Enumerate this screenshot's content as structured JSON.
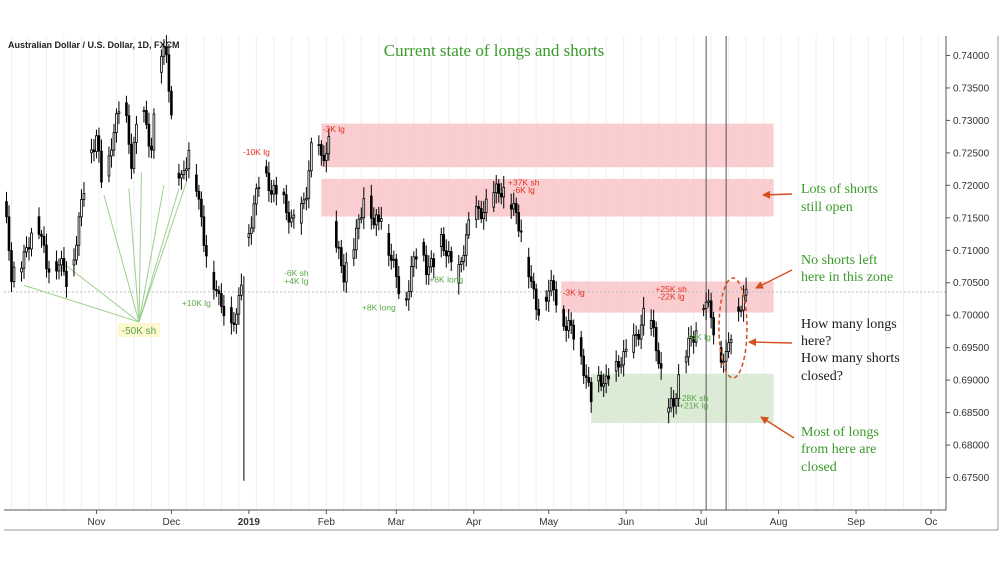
{
  "chart_data": {
    "type": "candlestick",
    "symbol_title": "Australian Dollar / U.S. Dollar, 1D, FXCM",
    "headline": "Current state of longs and shorts",
    "y_axis": {
      "min": 0.67,
      "max": 0.743,
      "ticks": [
        "0.74000",
        "0.73500",
        "0.73000",
        "0.72500",
        "0.72000",
        "0.71500",
        "0.71000",
        "0.70500",
        "0.70000",
        "0.69500",
        "0.69000",
        "0.68500",
        "0.68000",
        "0.67500"
      ],
      "tick_values": [
        0.74,
        0.735,
        0.73,
        0.725,
        0.72,
        0.715,
        0.71,
        0.705,
        0.7,
        0.695,
        0.69,
        0.685,
        0.68,
        0.675
      ],
      "reference_line": 0.7036
    },
    "x_axis": {
      "labels": [
        {
          "text": "Nov",
          "day": 37
        },
        {
          "text": "Dec",
          "day": 67
        },
        {
          "text": "2019",
          "day": 98,
          "bold": true
        },
        {
          "text": "Feb",
          "day": 129
        },
        {
          "text": "Mar",
          "day": 157
        },
        {
          "text": "Apr",
          "day": 188
        },
        {
          "text": "May",
          "day": 218
        },
        {
          "text": "Jun",
          "day": 249
        },
        {
          "text": "Jul",
          "day": 279
        },
        {
          "text": "Aug",
          "day": 310
        },
        {
          "text": "Sep",
          "day": 341
        },
        {
          "text": "Oc",
          "day": 371
        }
      ],
      "day_range": [
        0,
        377
      ],
      "vertical_markers": [
        281,
        289
      ]
    },
    "key_points": [
      [
        0,
        0.7175
      ],
      [
        3,
        0.7055
      ],
      [
        8,
        0.7095
      ],
      [
        13,
        0.7145
      ],
      [
        17,
        0.7085
      ],
      [
        22,
        0.7075
      ],
      [
        26,
        0.7045
      ],
      [
        29,
        0.7125
      ],
      [
        33,
        0.7215
      ],
      [
        37,
        0.728
      ],
      [
        40,
        0.7185
      ],
      [
        44,
        0.728
      ],
      [
        48,
        0.7335
      ],
      [
        51,
        0.724
      ],
      [
        55,
        0.7315
      ],
      [
        59,
        0.7265
      ],
      [
        62,
        0.7385
      ],
      [
        65,
        0.74
      ],
      [
        68,
        0.725
      ],
      [
        71,
        0.721
      ],
      [
        74,
        0.7245
      ],
      [
        77,
        0.72
      ],
      [
        80,
        0.7125
      ],
      [
        83,
        0.706
      ],
      [
        86,
        0.7015
      ],
      [
        90,
        0.701
      ],
      [
        93,
        0.699
      ],
      [
        96,
        0.708
      ],
      [
        100,
        0.7175
      ],
      [
        103,
        0.7225
      ],
      [
        107,
        0.7185
      ],
      [
        111,
        0.7195
      ],
      [
        115,
        0.7135
      ],
      [
        118,
        0.7145
      ],
      [
        121,
        0.72
      ],
      [
        124,
        0.7285
      ],
      [
        127,
        0.723
      ],
      [
        130,
        0.727
      ],
      [
        133,
        0.711
      ],
      [
        136,
        0.7055
      ],
      [
        139,
        0.7095
      ],
      [
        142,
        0.715
      ],
      [
        145,
        0.72
      ],
      [
        148,
        0.713
      ],
      [
        151,
        0.7165
      ],
      [
        154,
        0.7105
      ],
      [
        157,
        0.705
      ],
      [
        160,
        0.7015
      ],
      [
        163,
        0.7075
      ],
      [
        166,
        0.7105
      ],
      [
        169,
        0.707
      ],
      [
        172,
        0.7085
      ],
      [
        175,
        0.7115
      ],
      [
        178,
        0.708
      ],
      [
        181,
        0.7055
      ],
      [
        184,
        0.711
      ],
      [
        187,
        0.7145
      ],
      [
        190,
        0.7155
      ],
      [
        193,
        0.7175
      ],
      [
        196,
        0.7185
      ],
      [
        199,
        0.7185
      ],
      [
        202,
        0.7185
      ],
      [
        205,
        0.716
      ],
      [
        208,
        0.7105
      ],
      [
        211,
        0.7045
      ],
      [
        214,
        0.7015
      ],
      [
        217,
        0.703
      ],
      [
        220,
        0.7035
      ],
      [
        223,
        0.7005
      ],
      [
        226,
        0.6985
      ],
      [
        229,
        0.696
      ],
      [
        232,
        0.692
      ],
      [
        235,
        0.688
      ],
      [
        238,
        0.6895
      ],
      [
        241,
        0.689
      ],
      [
        244,
        0.692
      ],
      [
        247,
        0.6935
      ],
      [
        250,
        0.693
      ],
      [
        253,
        0.697
      ],
      [
        256,
        0.7005
      ],
      [
        259,
        0.698
      ],
      [
        262,
        0.693
      ],
      [
        265,
        0.687
      ],
      [
        268,
        0.686
      ],
      [
        271,
        0.6915
      ],
      [
        274,
        0.696
      ],
      [
        277,
        0.6985
      ],
      [
        280,
        0.7015
      ],
      [
        283,
        0.7
      ],
      [
        286,
        0.695
      ],
      [
        289,
        0.693
      ],
      [
        292,
        0.6985
      ],
      [
        295,
        0.7025
      ],
      [
        297,
        0.704
      ]
    ],
    "zones": [
      {
        "label": "short-zone-1",
        "day_from": 127,
        "day_to": 308,
        "price_from": 0.7228,
        "price_to": 0.7295,
        "color": "#f9c5c8"
      },
      {
        "label": "short-zone-2",
        "day_from": 127,
        "day_to": 308,
        "price_from": 0.7152,
        "price_to": 0.721,
        "color": "#f9c5c8"
      },
      {
        "label": "short-zone-3",
        "day_from": 223,
        "day_to": 308,
        "price_from": 0.7004,
        "price_to": 0.7052,
        "color": "#f9c5c8"
      },
      {
        "label": "long-zone",
        "day_from": 235,
        "day_to": 308,
        "price_from": 0.6834,
        "price_to": 0.691,
        "color": "#d5e8cf"
      }
    ],
    "annotations": [
      {
        "text": "-3K lg",
        "day": 132,
        "price": 0.7282,
        "color": "#e0301e"
      },
      {
        "text": "-10K lg",
        "day": 101,
        "price": 0.7247,
        "color": "#e0301e"
      },
      {
        "text": "+37K sh",
        "day": 208,
        "price": 0.72,
        "color": "#e0301e"
      },
      {
        "text": "-6K lg",
        "day": 208,
        "price": 0.7188,
        "color": "#e0301e"
      },
      {
        "text": "-3K lg",
        "day": 228,
        "price": 0.703,
        "color": "#e0301e"
      },
      {
        "text": "+25K sh",
        "day": 267,
        "price": 0.7036,
        "color": "#e0301e"
      },
      {
        "text": "-22K lg",
        "day": 267,
        "price": 0.7024,
        "color": "#e0301e"
      },
      {
        "text": "-6K sh",
        "day": 117,
        "price": 0.706,
        "color": "#5aa848"
      },
      {
        "text": "+4K lg",
        "day": 117,
        "price": 0.7048,
        "color": "#5aa848"
      },
      {
        "text": "+10K lg",
        "day": 77,
        "price": 0.7014,
        "color": "#5aa848"
      },
      {
        "text": "+8K long",
        "day": 150,
        "price": 0.7007,
        "color": "#5aa848"
      },
      {
        "text": "+8K long",
        "day": 177,
        "price": 0.705,
        "color": "#5aa848"
      },
      {
        "text": "+4K lg",
        "day": 278,
        "price": 0.6962,
        "color": "#5aa848"
      },
      {
        "text": "-28K sh",
        "day": 276,
        "price": 0.6868,
        "color": "#5aa848"
      },
      {
        "text": "+21K lg",
        "day": 276,
        "price": 0.6856,
        "color": "#5aa848"
      }
    ],
    "label_50k": {
      "text": "-50K sh",
      "day": 51,
      "price": 0.6993
    },
    "side_notes": [
      {
        "key": "lots_shorts",
        "lines": [
          "Lots of shorts",
          "still open"
        ],
        "color": "#3a9a2a"
      },
      {
        "key": "no_shorts",
        "lines": [
          "No shorts left",
          "here in this zone"
        ],
        "color": "#3a9a2a"
      },
      {
        "key": "how_many",
        "lines": [
          "How many longs",
          "here?",
          "How many shorts",
          "closed?"
        ],
        "color": "#1a1a1a"
      },
      {
        "key": "most_longs",
        "lines": [
          "Most of longs",
          "from here are",
          "closed"
        ],
        "color": "#3a9a2a"
      }
    ],
    "colors": {
      "up_body": "#ffffff",
      "down_body": "#000000",
      "wick": "#000000",
      "headline": "#3a9a2a",
      "arrow": "#d2501e",
      "axis": "#555555",
      "fan": "#9fd08e",
      "grid": "#f0f0f0"
    }
  }
}
